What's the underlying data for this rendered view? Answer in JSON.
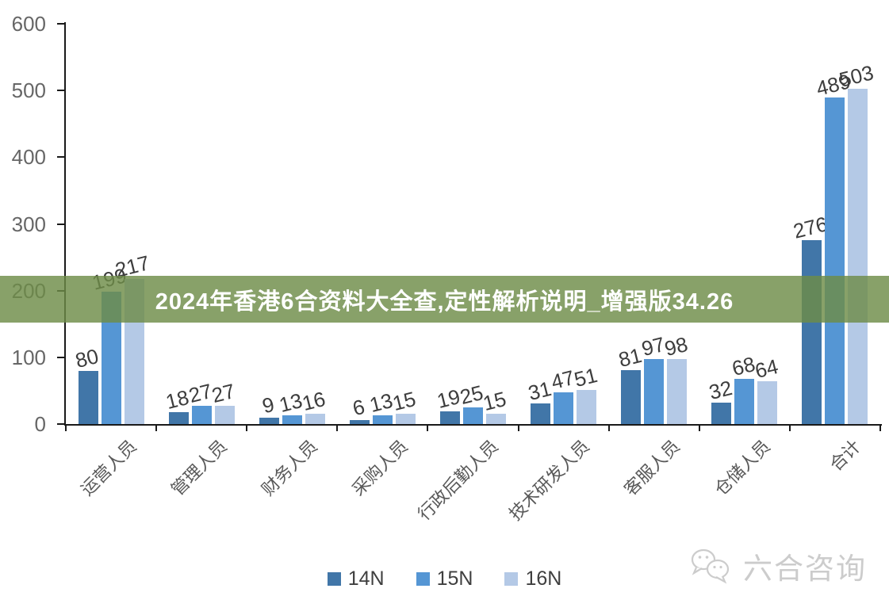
{
  "banner": {
    "text": "2024年香港6合资料大全查,定性解析说明_增强版34.26",
    "bg_color": "rgba(110,140,72,0.82)",
    "text_color": "#ffffff"
  },
  "watermark": {
    "text": "六合咨询",
    "icon": "wechat-bubbles-icon",
    "color": "#cccccc"
  },
  "chart_data": {
    "type": "bar",
    "title": "",
    "categories": [
      "运营人员",
      "管理人员",
      "财务人员",
      "采购人员",
      "行政后勤人员",
      "技术研发人员",
      "客服人员",
      "仓储人员",
      "合计"
    ],
    "series": [
      {
        "name": "14N",
        "color": "#4176A8",
        "values": [
          80,
          18,
          9,
          6,
          19,
          31,
          81,
          32,
          276
        ]
      },
      {
        "name": "15N",
        "color": "#5596D4",
        "values": [
          199,
          27,
          13,
          13,
          25,
          47,
          97,
          68,
          489
        ]
      },
      {
        "name": "16N",
        "color": "#B4C9E6",
        "values": [
          217,
          27,
          16,
          15,
          15,
          51,
          98,
          64,
          503
        ]
      }
    ],
    "ylim": [
      0,
      600
    ],
    "yticks": [
      0,
      100,
      200,
      300,
      400,
      500,
      600
    ],
    "xlabel": "",
    "ylabel": "",
    "grid": false,
    "legend_position": "bottom",
    "data_labels": true,
    "data_label_rotation_deg": -14,
    "x_label_rotation_deg": -45,
    "axis_color": "#1a1a1a",
    "tick_label_color": "#666666"
  }
}
